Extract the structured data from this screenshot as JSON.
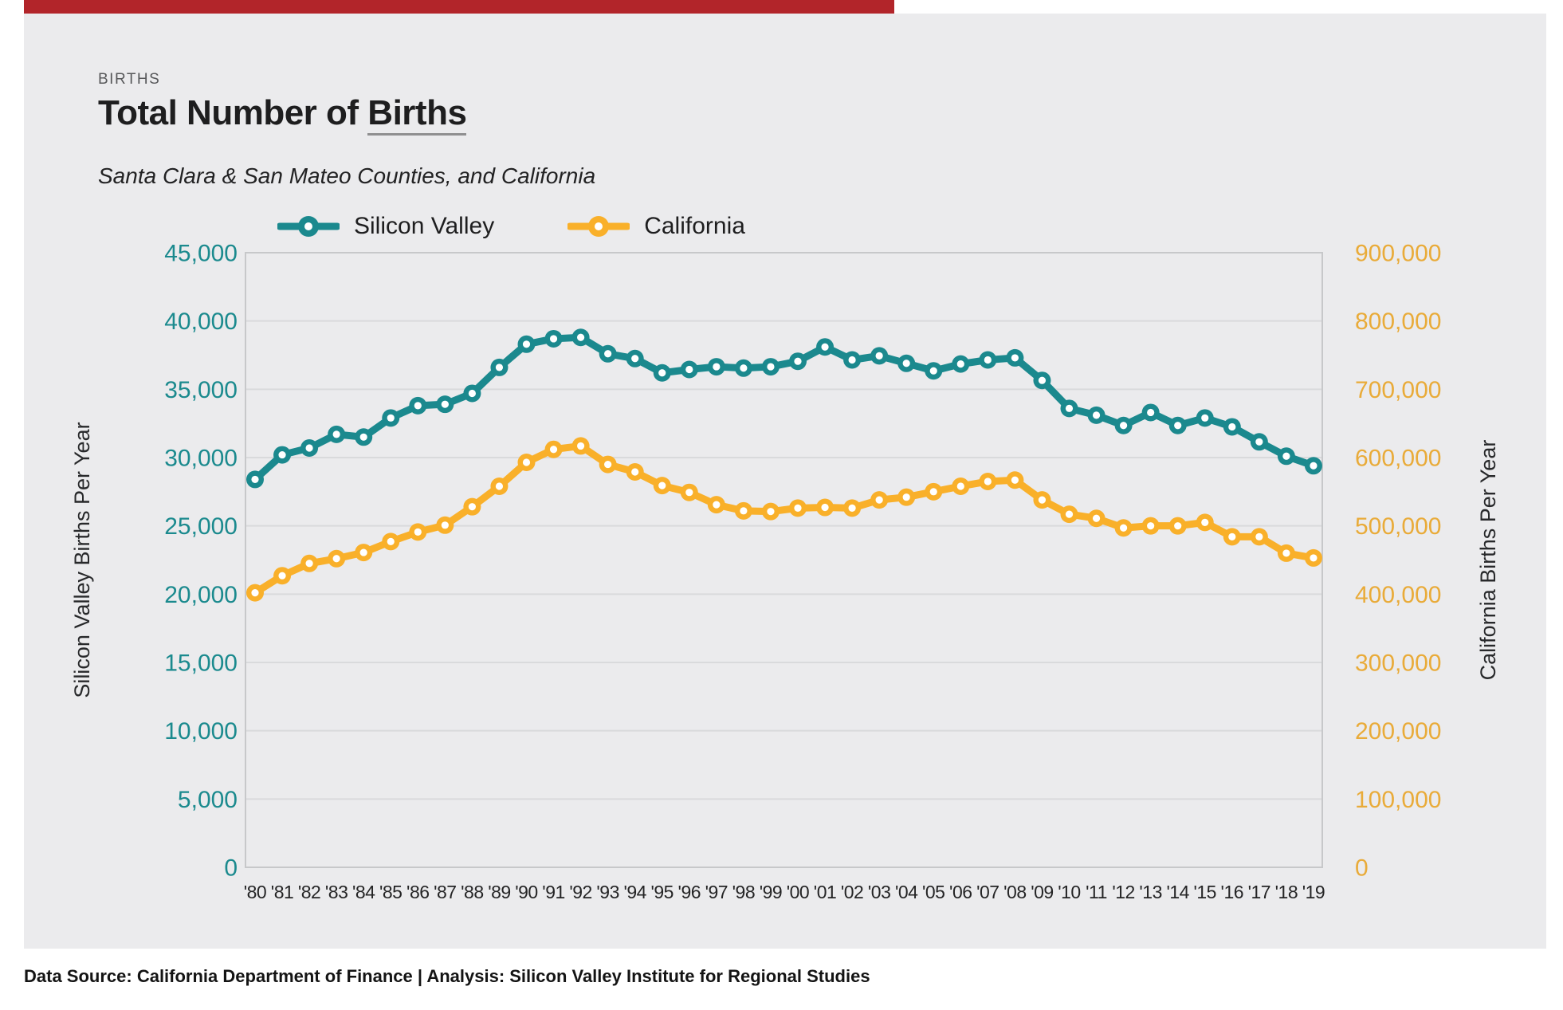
{
  "page": {
    "accent_color": "#b2252a",
    "card_bg": "#ebebed",
    "grid_color": "#d9dadc",
    "plot_border_color": "#c7c8ca"
  },
  "header": {
    "eyebrow": "BIRTHS",
    "title_prefix": "Total Number of ",
    "title_underlined": "Births",
    "subtitle": "Santa Clara & San Mateo Counties, and California"
  },
  "legend": [
    {
      "label": "Silicon Valley",
      "color": "#1b898e"
    },
    {
      "label": "California",
      "color": "#f9b02a"
    }
  ],
  "chart_data": {
    "type": "line",
    "title": "Total Number of Births",
    "subtitle": "Santa Clara & San Mateo Counties, and California",
    "grid": true,
    "legend_position": "top",
    "categories": [
      "'80",
      "'81",
      "'82",
      "'83",
      "'84",
      "'85",
      "'86",
      "'87",
      "'88",
      "'89",
      "'90",
      "'91",
      "'92",
      "'93",
      "'94",
      "'95",
      "'96",
      "'97",
      "'98",
      "'99",
      "'00",
      "'01",
      "'02",
      "'03",
      "'04",
      "'05",
      "'06",
      "'07",
      "'08",
      "'09",
      "'10",
      "'11",
      "'12",
      "'13",
      "'14",
      "'15",
      "'16",
      "'17",
      "'18",
      "'19"
    ],
    "x_tick_color": "#242425",
    "left_axis": {
      "label": "Silicon Valley Births Per Year",
      "min": 0,
      "max": 45000,
      "step": 5000,
      "tick_color": "#1b8a8e",
      "label_color": "#28292b"
    },
    "right_axis": {
      "label": "California Births Per Year",
      "min": 0,
      "max": 900000,
      "step": 100000,
      "tick_color": "#e9ab39",
      "label_color": "#28292b"
    },
    "series": [
      {
        "name": "California",
        "axis": "right",
        "color": "#f9b02a",
        "values": [
          402000,
          427000,
          445000,
          452000,
          461000,
          477000,
          491000,
          501000,
          528000,
          558000,
          593000,
          612000,
          617000,
          590000,
          579000,
          559000,
          549000,
          531000,
          522000,
          521000,
          526000,
          527000,
          526000,
          538000,
          542000,
          550000,
          558000,
          565000,
          567000,
          538000,
          517000,
          511000,
          497000,
          500000,
          500000,
          505000,
          484000,
          484000,
          460000,
          453000
        ]
      },
      {
        "name": "Silicon Valley",
        "axis": "left",
        "color": "#1b898e",
        "values": [
          28400,
          30200,
          30700,
          31700,
          31500,
          32900,
          33800,
          33900,
          34700,
          36600,
          38300,
          38700,
          38800,
          37600,
          37250,
          36200,
          36450,
          36650,
          36550,
          36650,
          37050,
          38100,
          37150,
          37450,
          36900,
          36350,
          36850,
          37150,
          37300,
          35650,
          33600,
          33100,
          32350,
          33300,
          32350,
          32900,
          32250,
          31150,
          30100,
          29400
        ]
      }
    ]
  },
  "footer": {
    "text": "Data Source: California Department of Finance | Analysis: Silicon Valley Institute for Regional Studies"
  }
}
